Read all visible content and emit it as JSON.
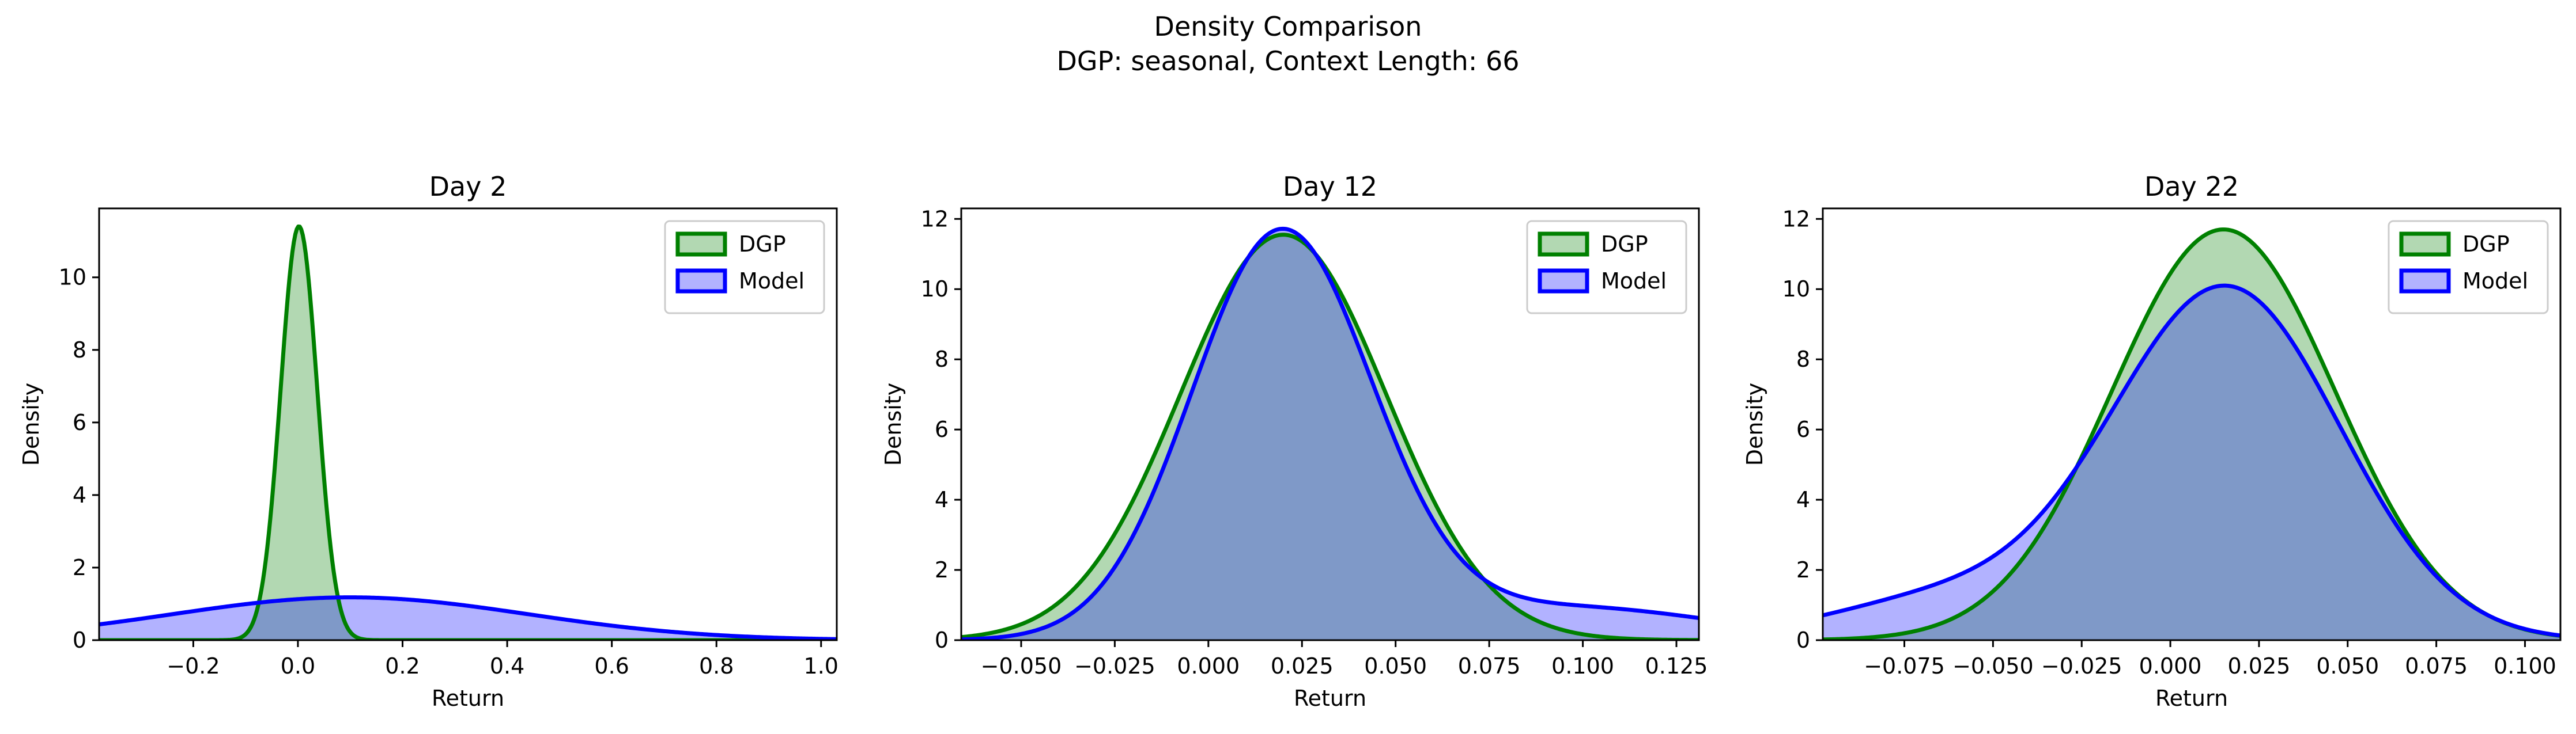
{
  "figure": {
    "title": "Density Comparison",
    "subtitle": "DGP: seasonal, Context Length: 66"
  },
  "colors": {
    "dgp_line": "#008000",
    "dgp_fill": "#b2d8b2",
    "model_line": "#0000ff",
    "model_fill": "#b2b2ff",
    "overlap_fill": "#7f99c8"
  },
  "chart_data": [
    {
      "type": "area",
      "title": "Day 2",
      "xlabel": "Return",
      "ylabel": "Density",
      "xlim": [
        -0.38,
        1.03
      ],
      "ylim": [
        0,
        11.9
      ],
      "xticks": [
        -0.2,
        0.0,
        0.2,
        0.4,
        0.6,
        0.8,
        1.0
      ],
      "xtick_labels": [
        "−0.2",
        "0.0",
        "0.2",
        "0.4",
        "0.6",
        "0.8",
        "1.0"
      ],
      "yticks": [
        0,
        2,
        4,
        6,
        8,
        10
      ],
      "ytick_labels": [
        "0",
        "2",
        "4",
        "6",
        "8",
        "10"
      ],
      "legend": {
        "placement": "upper-right",
        "entries": [
          "DGP",
          "Model"
        ]
      },
      "series": [
        {
          "name": "DGP",
          "kind": "normal",
          "mean": 0.002,
          "sd": 0.035,
          "peak": 11.4
        },
        {
          "name": "Model",
          "kind": "normal",
          "mean": 0.1,
          "sd": 0.34,
          "peak": 1.18
        }
      ]
    },
    {
      "type": "area",
      "title": "Day 12",
      "xlabel": "Return",
      "ylabel": "Density",
      "xlim": [
        -0.066,
        0.131
      ],
      "ylim": [
        0,
        12.3
      ],
      "xticks": [
        -0.05,
        -0.025,
        0.0,
        0.025,
        0.05,
        0.075,
        0.1,
        0.125
      ],
      "xtick_labels": [
        "−0.050",
        "−0.025",
        "0.000",
        "0.025",
        "0.050",
        "0.075",
        "0.100",
        "0.125"
      ],
      "yticks": [
        0,
        2,
        4,
        6,
        8,
        10,
        12
      ],
      "ytick_labels": [
        "0",
        "2",
        "4",
        "6",
        "8",
        "10",
        "12"
      ],
      "legend": {
        "placement": "upper-right",
        "entries": [
          "DGP",
          "Model"
        ]
      },
      "series": [
        {
          "name": "DGP",
          "kind": "normal",
          "mean": 0.02,
          "sd": 0.0275,
          "peak": 11.55
        },
        {
          "name": "Model",
          "kind": "mixture",
          "peak": 11.72,
          "components": [
            {
              "mean": 0.0195,
              "sd": 0.024,
              "weight": 0.88
            },
            {
              "mean": 0.095,
              "sd": 0.04,
              "weight": 0.12
            }
          ]
        }
      ]
    },
    {
      "type": "area",
      "title": "Day 22",
      "xlabel": "Return",
      "ylabel": "Density",
      "xlim": [
        -0.098,
        0.11
      ],
      "ylim": [
        0,
        12.3
      ],
      "xticks": [
        -0.075,
        -0.05,
        -0.025,
        0.0,
        0.025,
        0.05,
        0.075,
        0.1
      ],
      "xtick_labels": [
        "−0.075",
        "−0.050",
        "−0.025",
        "0.000",
        "0.025",
        "0.050",
        "0.075",
        "0.100"
      ],
      "yticks": [
        0,
        2,
        4,
        6,
        8,
        10,
        12
      ],
      "ytick_labels": [
        "0",
        "2",
        "4",
        "6",
        "8",
        "10",
        "12"
      ],
      "legend": {
        "placement": "upper-right",
        "entries": [
          "DGP",
          "Model"
        ]
      },
      "series": [
        {
          "name": "DGP",
          "kind": "normal",
          "mean": 0.015,
          "sd": 0.0315,
          "peak": 11.7
        },
        {
          "name": "Model",
          "kind": "mixture",
          "peak": 10.1,
          "components": [
            {
              "mean": 0.016,
              "sd": 0.032,
              "weight": 0.88
            },
            {
              "mean": -0.06,
              "sd": 0.035,
              "weight": 0.12
            }
          ]
        }
      ]
    }
  ]
}
